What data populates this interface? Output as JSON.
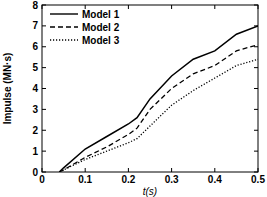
{
  "chart_data": {
    "type": "line",
    "x_label": "t(s)",
    "y_label": "Impulse (MN·s)",
    "x": [
      0.04,
      0.05,
      0.1,
      0.15,
      0.2,
      0.22,
      0.25,
      0.3,
      0.35,
      0.4,
      0.45,
      0.5
    ],
    "series": [
      {
        "name": "Model 1",
        "color": "#000000",
        "line_style": "solid",
        "values": [
          0,
          0.2,
          1.1,
          1.7,
          2.3,
          2.6,
          3.5,
          4.6,
          5.4,
          5.8,
          6.6,
          7.0
        ]
      },
      {
        "name": "Model 2",
        "color": "#000000",
        "line_style": "dashed",
        "values": [
          0,
          0.1,
          0.7,
          1.2,
          1.8,
          2.1,
          3.0,
          4.0,
          4.7,
          5.1,
          5.8,
          6.1
        ]
      },
      {
        "name": "Model 3",
        "color": "#000000",
        "line_style": "dotted",
        "values": [
          0,
          0.1,
          0.6,
          1.0,
          1.4,
          1.6,
          2.2,
          3.2,
          3.9,
          4.5,
          5.1,
          5.4
        ]
      }
    ],
    "xlim": [
      0,
      0.5
    ],
    "xticks": [
      0,
      0.1,
      0.2,
      0.3,
      0.4,
      0.5
    ],
    "ylim": [
      0,
      8
    ],
    "yticks": [
      0,
      1,
      2,
      3,
      4,
      5,
      6,
      7,
      8
    ],
    "grid": false,
    "legend": "top-left"
  }
}
